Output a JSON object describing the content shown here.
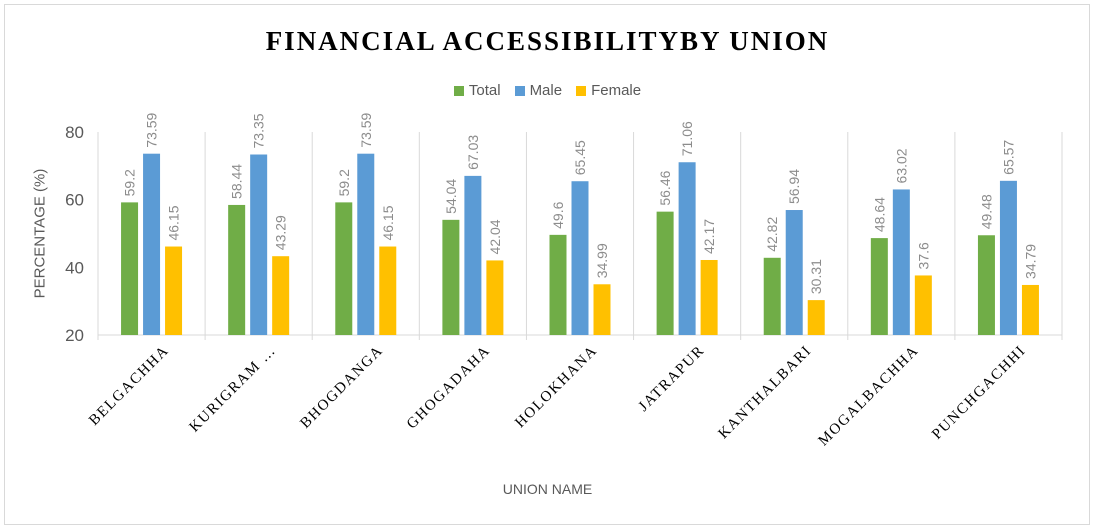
{
  "chart_data": {
    "type": "bar",
    "title": "FINANCIAL ACCESSIBILITYBY UNION",
    "xlabel": "UNION NAME",
    "ylabel": "PERCENTAGE (%)",
    "ylim": [
      20,
      80
    ],
    "yticks": [
      20,
      40,
      60,
      80
    ],
    "grid": "vertical-category-separators",
    "legend_position": "top",
    "categories": [
      "BELGACHHA",
      "KURIGRAM …",
      "BHOGDANGA",
      "GHOGADAHA",
      "HOLOKHANA",
      "JATRAPUR",
      "KANTHALBARI",
      "MOGALBACHHA",
      "PUNCHGACHHI"
    ],
    "series": [
      {
        "name": "Total",
        "color": "#70ad47",
        "values": [
          59.2,
          58.44,
          59.2,
          54.04,
          49.6,
          56.46,
          42.82,
          48.64,
          49.48
        ]
      },
      {
        "name": "Male",
        "color": "#5b9bd5",
        "values": [
          73.59,
          73.35,
          73.59,
          67.03,
          65.45,
          71.06,
          56.94,
          63.02,
          65.57
        ]
      },
      {
        "name": "Female",
        "color": "#ffc000",
        "values": [
          46.15,
          43.29,
          46.15,
          42.04,
          34.99,
          42.17,
          30.31,
          37.6,
          34.79
        ]
      }
    ]
  }
}
